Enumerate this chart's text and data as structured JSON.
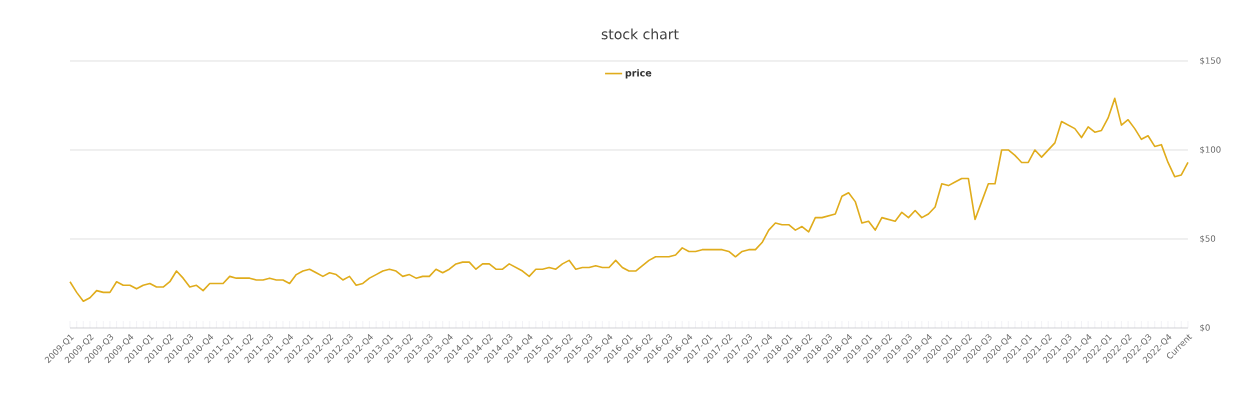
{
  "chart_data": {
    "type": "line",
    "title": "stock chart",
    "categories": [
      "2009-Q1",
      null,
      null,
      "2009-Q2",
      null,
      null,
      "2009-Q3",
      null,
      null,
      "2009-Q4",
      null,
      null,
      "2010-Q1",
      null,
      null,
      "2010-Q2",
      null,
      null,
      "2010-Q3",
      null,
      null,
      "2010-Q4",
      null,
      null,
      "2011-Q1",
      null,
      null,
      "2011-Q2",
      null,
      null,
      "2011-Q3",
      null,
      null,
      "2011-Q4",
      null,
      null,
      "2012-Q1",
      null,
      null,
      "2012-Q2",
      null,
      null,
      "2012-Q3",
      null,
      null,
      "2012-Q4",
      null,
      null,
      "2013-Q1",
      null,
      null,
      "2013-Q2",
      null,
      null,
      "2013-Q3",
      null,
      null,
      "2013-Q4",
      null,
      null,
      "2014-Q1",
      null,
      null,
      "2014-Q2",
      null,
      null,
      "2014-Q3",
      null,
      null,
      "2014-Q4",
      null,
      null,
      "2015-Q1",
      null,
      null,
      "2015-Q2",
      null,
      null,
      "2015-Q3",
      null,
      null,
      "2015-Q4",
      null,
      null,
      "2016-Q1",
      null,
      null,
      "2016-Q2",
      null,
      null,
      "2016-Q3",
      null,
      null,
      "2016-Q4",
      null,
      null,
      "2017-Q1",
      null,
      null,
      "2017-Q2",
      null,
      null,
      "2017-Q3",
      null,
      null,
      "2017-Q4",
      null,
      null,
      "2018-Q1",
      null,
      null,
      "2018-Q2",
      null,
      null,
      "2018-Q3",
      null,
      null,
      "2018-Q4",
      null,
      null,
      "2019-Q1",
      null,
      null,
      "2019-Q2",
      null,
      null,
      "2019-Q3",
      null,
      null,
      "2019-Q4",
      null,
      null,
      "2020-Q1",
      null,
      null,
      "2020-Q2",
      null,
      null,
      "2020-Q3",
      null,
      null,
      "2020-Q4",
      null,
      null,
      "2021-Q1",
      null,
      null,
      "2021-Q2",
      null,
      null,
      "2021-Q3",
      null,
      null,
      "2021-Q4",
      null,
      null,
      "2022-Q1",
      null,
      null,
      "2022-Q2",
      null,
      null,
      "2022-Q3",
      null,
      null,
      "2022-Q4",
      null,
      null,
      "Current"
    ],
    "series": [
      {
        "name": "price",
        "color": "#e0ac1c",
        "values": [
          26,
          20,
          15,
          17,
          21,
          20,
          20,
          26,
          24,
          24,
          22,
          24,
          25,
          23,
          23,
          26,
          32,
          28,
          23,
          24,
          21,
          25,
          25,
          25,
          29,
          28,
          28,
          28,
          27,
          27,
          28,
          27,
          27,
          25,
          30,
          32,
          33,
          31,
          29,
          31,
          30,
          27,
          29,
          24,
          25,
          28,
          30,
          32,
          33,
          32,
          29,
          30,
          28,
          29,
          29,
          33,
          31,
          33,
          36,
          37,
          37,
          33,
          36,
          36,
          33,
          33,
          36,
          34,
          32,
          29,
          33,
          33,
          34,
          33,
          36,
          38,
          33,
          34,
          34,
          35,
          34,
          34,
          38,
          34,
          32,
          32,
          35,
          38,
          40,
          40,
          40,
          41,
          45,
          43,
          43,
          44,
          44,
          44,
          44,
          43,
          40,
          43,
          44,
          44,
          48,
          55,
          59,
          58,
          58,
          55,
          57,
          54,
          62,
          62,
          63,
          64,
          74,
          76,
          71,
          59,
          60,
          55,
          62,
          61,
          60,
          65,
          62,
          66,
          62,
          64,
          68,
          81,
          80,
          82,
          84,
          84,
          61,
          71,
          81,
          81,
          100,
          100,
          97,
          93,
          93,
          100,
          96,
          100,
          104,
          116,
          114,
          112,
          107,
          113,
          110,
          111,
          118,
          129,
          114,
          117,
          112,
          106,
          108,
          102,
          103,
          93,
          85,
          86,
          93
        ]
      }
    ],
    "ylim": [
      0,
      150
    ],
    "yticks": [
      {
        "value": 0,
        "label": "$0"
      },
      {
        "value": 50,
        "label": "$50"
      },
      {
        "value": 100,
        "label": "$100"
      },
      {
        "value": 150,
        "label": "$150"
      }
    ],
    "grid": "y",
    "legend": "top"
  }
}
